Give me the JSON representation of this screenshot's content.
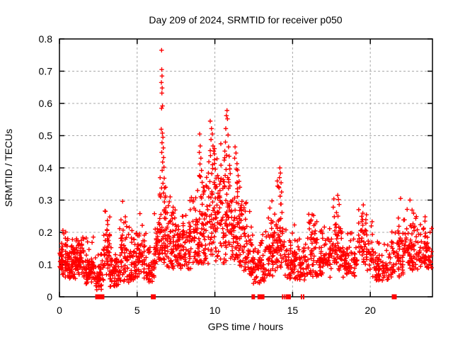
{
  "chart_data": {
    "type": "scatter",
    "title": "Day 209 of 2024, SRMTID for receiver p050",
    "xlabel": "GPS time / hours",
    "ylabel": "SRMTID / TECUs",
    "xlim": [
      0,
      24
    ],
    "ylim": [
      0,
      0.8
    ],
    "xticks": [
      0,
      5,
      10,
      15,
      20
    ],
    "yticks": [
      0,
      0.1,
      0.2,
      0.3,
      0.4,
      0.5,
      0.6,
      0.7,
      0.8
    ],
    "grid": {
      "style": "dashed",
      "color": "#a8a8a8",
      "x_lines": [
        5,
        10,
        15,
        20
      ],
      "y_lines": [
        0.1,
        0.2,
        0.3,
        0.4,
        0.5,
        0.6,
        0.7
      ]
    },
    "legend": "none",
    "marker": {
      "shape": "plus",
      "color": "#ff0000",
      "size": 7
    },
    "axis_color": "#000000",
    "background": "#ffffff",
    "seed": 20240729,
    "notable_points": [
      [
        6.57,
        0.765
      ],
      [
        6.58,
        0.705
      ],
      [
        6.6,
        0.685
      ],
      [
        6.56,
        0.665
      ],
      [
        6.61,
        0.648
      ],
      [
        6.59,
        0.632
      ],
      [
        6.63,
        0.592
      ],
      [
        6.57,
        0.585
      ],
      [
        6.55,
        0.52
      ],
      [
        6.62,
        0.508
      ],
      [
        6.66,
        0.495
      ],
      [
        6.6,
        0.478
      ],
      [
        6.68,
        0.462
      ],
      [
        6.58,
        0.448
      ],
      [
        6.7,
        0.432
      ],
      [
        6.64,
        0.418
      ],
      [
        6.72,
        0.402
      ],
      [
        6.61,
        0.392
      ],
      [
        6.74,
        0.368
      ],
      [
        6.66,
        0.352
      ],
      [
        6.76,
        0.338
      ],
      [
        6.7,
        0.322
      ],
      [
        6.8,
        0.308
      ],
      [
        9.02,
        0.505
      ],
      [
        9.06,
        0.468
      ],
      [
        9.0,
        0.448
      ],
      [
        9.1,
        0.43
      ],
      [
        9.04,
        0.412
      ],
      [
        9.14,
        0.392
      ],
      [
        9.08,
        0.372
      ],
      [
        9.18,
        0.355
      ],
      [
        9.3,
        0.34
      ],
      [
        9.7,
        0.545
      ],
      [
        9.78,
        0.522
      ],
      [
        9.83,
        0.505
      ],
      [
        9.75,
        0.488
      ],
      [
        9.88,
        0.468
      ],
      [
        9.93,
        0.452
      ],
      [
        9.72,
        0.438
      ],
      [
        9.98,
        0.425
      ],
      [
        9.85,
        0.41
      ],
      [
        10.03,
        0.396
      ],
      [
        9.8,
        0.382
      ],
      [
        10.08,
        0.368
      ],
      [
        9.95,
        0.355
      ],
      [
        10.12,
        0.342
      ],
      [
        10.78,
        0.578
      ],
      [
        10.74,
        0.562
      ],
      [
        10.81,
        0.552
      ],
      [
        10.7,
        0.522
      ],
      [
        10.85,
        0.502
      ],
      [
        10.68,
        0.48
      ],
      [
        10.88,
        0.465
      ],
      [
        10.64,
        0.452
      ],
      [
        10.92,
        0.436
      ],
      [
        10.6,
        0.424
      ],
      [
        10.95,
        0.408
      ],
      [
        10.72,
        0.395
      ],
      [
        10.99,
        0.382
      ],
      [
        10.83,
        0.37
      ],
      [
        10.89,
        0.356
      ],
      [
        10.62,
        0.344
      ],
      [
        11.3,
        0.465
      ],
      [
        11.36,
        0.446
      ],
      [
        11.27,
        0.43
      ],
      [
        11.42,
        0.413
      ],
      [
        11.38,
        0.396
      ],
      [
        11.5,
        0.376
      ],
      [
        11.56,
        0.358
      ],
      [
        11.61,
        0.34
      ],
      [
        11.46,
        0.326
      ],
      [
        14.18,
        0.4
      ],
      [
        14.22,
        0.384
      ],
      [
        14.16,
        0.37
      ],
      [
        14.26,
        0.354
      ],
      [
        14.13,
        0.338
      ],
      [
        14.29,
        0.325
      ],
      [
        14.2,
        0.312
      ],
      [
        4.06,
        0.296
      ],
      [
        2.96,
        0.265
      ],
      [
        5.18,
        0.258
      ],
      [
        17.9,
        0.315
      ],
      [
        17.95,
        0.302
      ],
      [
        19.55,
        0.285
      ],
      [
        21.95,
        0.305
      ],
      [
        22.55,
        0.3
      ]
    ],
    "dense_bands": [
      {
        "x0": 0.0,
        "x1": 0.55,
        "n": 65,
        "lo": 0.06,
        "hi": 0.215
      },
      {
        "x0": 0.55,
        "x1": 1.05,
        "n": 55,
        "lo": 0.05,
        "hi": 0.185
      },
      {
        "x0": 1.05,
        "x1": 1.6,
        "n": 60,
        "lo": 0.055,
        "hi": 0.225
      },
      {
        "x0": 1.6,
        "x1": 2.25,
        "n": 65,
        "lo": 0.04,
        "hi": 0.19
      },
      {
        "x0": 2.25,
        "x1": 2.85,
        "n": 45,
        "lo": 0.02,
        "hi": 0.165
      },
      {
        "x0": 2.85,
        "x1": 3.25,
        "n": 45,
        "lo": 0.05,
        "hi": 0.27
      },
      {
        "x0": 3.25,
        "x1": 3.85,
        "n": 55,
        "lo": 0.03,
        "hi": 0.175
      },
      {
        "x0": 3.85,
        "x1": 4.45,
        "n": 55,
        "lo": 0.04,
        "hi": 0.3
      },
      {
        "x0": 4.45,
        "x1": 5.0,
        "n": 50,
        "lo": 0.05,
        "hi": 0.225
      },
      {
        "x0": 5.0,
        "x1": 5.55,
        "n": 45,
        "lo": 0.05,
        "hi": 0.26
      },
      {
        "x0": 5.55,
        "x1": 6.1,
        "n": 45,
        "lo": 0.04,
        "hi": 0.2
      },
      {
        "x0": 6.1,
        "x1": 6.45,
        "n": 35,
        "lo": 0.08,
        "hi": 0.3
      },
      {
        "x0": 6.45,
        "x1": 6.85,
        "n": 50,
        "lo": 0.1,
        "hi": 0.42
      },
      {
        "x0": 6.85,
        "x1": 7.45,
        "n": 55,
        "lo": 0.08,
        "hi": 0.33
      },
      {
        "x0": 7.45,
        "x1": 8.25,
        "n": 75,
        "lo": 0.08,
        "hi": 0.28
      },
      {
        "x0": 8.25,
        "x1": 9.0,
        "n": 70,
        "lo": 0.08,
        "hi": 0.35
      },
      {
        "x0": 9.0,
        "x1": 9.6,
        "n": 60,
        "lo": 0.1,
        "hi": 0.44
      },
      {
        "x0": 9.6,
        "x1": 10.2,
        "n": 65,
        "lo": 0.1,
        "hi": 0.5
      },
      {
        "x0": 10.2,
        "x1": 10.95,
        "n": 75,
        "lo": 0.1,
        "hi": 0.54
      },
      {
        "x0": 10.95,
        "x1": 11.55,
        "n": 60,
        "lo": 0.1,
        "hi": 0.46
      },
      {
        "x0": 11.55,
        "x1": 12.05,
        "n": 50,
        "lo": 0.08,
        "hi": 0.38
      },
      {
        "x0": 12.05,
        "x1": 12.45,
        "n": 35,
        "lo": 0.06,
        "hi": 0.28
      },
      {
        "x0": 12.45,
        "x1": 13.25,
        "n": 60,
        "lo": 0.04,
        "hi": 0.22
      },
      {
        "x0": 13.25,
        "x1": 14.0,
        "n": 65,
        "lo": 0.06,
        "hi": 0.32
      },
      {
        "x0": 14.0,
        "x1": 14.5,
        "n": 45,
        "lo": 0.08,
        "hi": 0.38
      },
      {
        "x0": 14.5,
        "x1": 15.15,
        "n": 50,
        "lo": 0.05,
        "hi": 0.24
      },
      {
        "x0": 15.15,
        "x1": 15.85,
        "n": 55,
        "lo": 0.05,
        "hi": 0.22
      },
      {
        "x0": 15.85,
        "x1": 16.55,
        "n": 55,
        "lo": 0.06,
        "hi": 0.3
      },
      {
        "x0": 16.55,
        "x1": 17.55,
        "n": 75,
        "lo": 0.06,
        "hi": 0.25
      },
      {
        "x0": 17.55,
        "x1": 18.25,
        "n": 60,
        "lo": 0.08,
        "hi": 0.31
      },
      {
        "x0": 18.25,
        "x1": 19.25,
        "n": 70,
        "lo": 0.06,
        "hi": 0.22
      },
      {
        "x0": 19.25,
        "x1": 20.15,
        "n": 65,
        "lo": 0.08,
        "hi": 0.29
      },
      {
        "x0": 20.15,
        "x1": 21.35,
        "n": 80,
        "lo": 0.05,
        "hi": 0.18
      },
      {
        "x0": 21.35,
        "x1": 22.25,
        "n": 70,
        "lo": 0.06,
        "hi": 0.285
      },
      {
        "x0": 22.25,
        "x1": 23.05,
        "n": 65,
        "lo": 0.08,
        "hi": 0.305
      },
      {
        "x0": 23.05,
        "x1": 23.95,
        "n": 70,
        "lo": 0.08,
        "hi": 0.26
      }
    ],
    "zero_markers": [
      {
        "x": 2.46,
        "w": 7
      },
      {
        "x": 2.73,
        "w": 7
      },
      {
        "x": 6.04,
        "w": 7
      },
      {
        "x": 12.47,
        "w": 5
      },
      {
        "x": 12.9,
        "w": 7
      },
      {
        "x": 13.03,
        "w": 7
      },
      {
        "x": 14.36,
        "w": 2
      },
      {
        "x": 14.5,
        "w": 2
      },
      {
        "x": 14.73,
        "w": 7
      },
      {
        "x": 15.57,
        "w": 2
      },
      {
        "x": 15.71,
        "w": 2
      },
      {
        "x": 21.54,
        "w": 7
      }
    ]
  }
}
